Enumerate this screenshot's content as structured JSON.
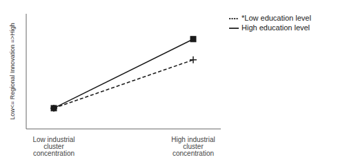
{
  "chart_data": {
    "type": "line",
    "categories": [
      "Low industrial cluster concentration",
      "High industrial cluster concentration"
    ],
    "series": [
      {
        "name": "*Low education level",
        "color": "#1a1a1a",
        "values": [
          0.18,
          0.6
        ],
        "line_style": "dashed",
        "marker": "plus"
      },
      {
        "name": "High education level",
        "color": "#1a1a1a",
        "values": [
          0.18,
          0.78
        ],
        "line_style": "solid",
        "marker": "square"
      }
    ],
    "ylabel": "Low<= Regional Innovation =>High",
    "ylim": [
      0.0,
      1.0
    ],
    "tick_labels": "x",
    "legend": "right"
  }
}
